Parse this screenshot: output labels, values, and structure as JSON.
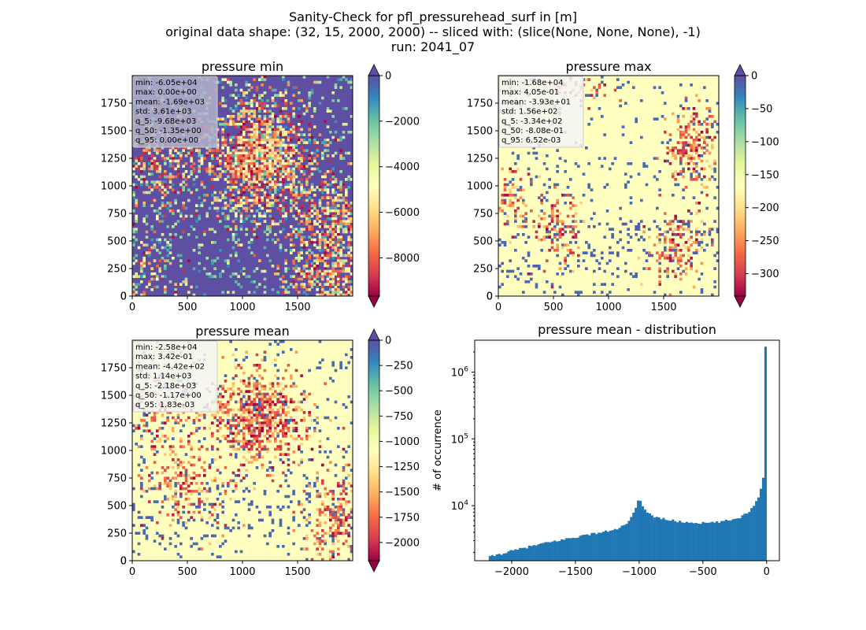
{
  "suptitle": {
    "line1": "Sanity-Check for pfl_pressurehead_surf in [m]",
    "line2": "original data shape: (32, 15, 2000, 2000) -- sliced with: (slice(None, None, None), -1)",
    "line3": "run: 2041_07"
  },
  "colors": {
    "spectral": [
      "#9e0142",
      "#d53e4f",
      "#f46d43",
      "#fdae61",
      "#fee08b",
      "#ffffbf",
      "#e6f598",
      "#abdda4",
      "#66c2a5",
      "#3288bd",
      "#5e4fa2"
    ],
    "hist_bar": "#1f77b4",
    "stats_box_bg": "#f5f5f5"
  },
  "chart_data": [
    {
      "type": "heatmap",
      "title": "pressure min",
      "colormap": "Spectral",
      "xlim": [
        0,
        2000
      ],
      "ylim": [
        0,
        2000
      ],
      "xticks": [
        0,
        500,
        1000,
        1500
      ],
      "yticks": [
        0,
        250,
        500,
        750,
        1000,
        1250,
        1500,
        1750
      ],
      "colorbar": {
        "range": [
          -9680,
          0
        ],
        "ticks": [
          0,
          -2000,
          -4000,
          -6000,
          -8000
        ],
        "extend": "both"
      },
      "dominant_value": "0 (blue) with scattered negative patches",
      "stats": [
        "min: -6.05e+04",
        "max: 0.00e+00",
        "mean: -1.69e+03",
        "std: 3.61e+03",
        "q_5: -9.68e+03",
        "q_50: -1.35e+00",
        "q_95: 0.00e+00"
      ]
    },
    {
      "type": "heatmap",
      "title": "pressure max",
      "colormap": "Spectral",
      "xlim": [
        0,
        2000
      ],
      "ylim": [
        0,
        2000
      ],
      "xticks": [
        0,
        500,
        1000,
        1500
      ],
      "yticks": [
        0,
        250,
        500,
        750,
        1000,
        1250,
        1500,
        1750
      ],
      "colorbar": {
        "range": [
          -334,
          0.0065
        ],
        "ticks": [
          0,
          -50,
          -100,
          -150,
          -200,
          -250,
          -300
        ],
        "extend": "both"
      },
      "dominant_value": "near 0 (pale yellow)",
      "stats": [
        "min: -1.68e+04",
        "max: 4.05e-01",
        "mean: -3.93e+01",
        "std: 1.56e+02",
        "q_5: -3.34e+02",
        "q_50: -8.08e-01",
        "q_95: 6.52e-03"
      ]
    },
    {
      "type": "heatmap",
      "title": "pressure mean",
      "colormap": "Spectral",
      "xlim": [
        0,
        2000
      ],
      "ylim": [
        0,
        2000
      ],
      "xticks": [
        0,
        500,
        1000,
        1500
      ],
      "yticks": [
        0,
        250,
        500,
        750,
        1000,
        1250,
        1500,
        1750
      ],
      "colorbar": {
        "range": [
          -2180,
          0.0018
        ],
        "ticks": [
          0,
          -250,
          -500,
          -750,
          -1000,
          -1250,
          -1500,
          -1750,
          -2000
        ],
        "extend": "both"
      },
      "dominant_value": "near 0 (pale yellow) with negative central region",
      "stats": [
        "min: -2.58e+04",
        "max: 3.42e-01",
        "mean: -4.42e+02",
        "std: 1.14e+03",
        "q_5: -2.18e+03",
        "q_50: -1.17e+00",
        "q_95: 1.83e-03"
      ]
    },
    {
      "type": "bar",
      "title": "pressure mean - distribution",
      "ylabel": "# of occurrence",
      "yscale": "log",
      "xlim": [
        -2290,
        100
      ],
      "ylim": [
        1500,
        3000000
      ],
      "xticks": [
        -2000,
        -1500,
        -1000,
        -500,
        0
      ],
      "yticks": [
        10000,
        100000,
        1000000
      ],
      "ytick_labels": [
        [
          "10",
          "4"
        ],
        [
          "10",
          "5"
        ],
        [
          "10",
          "6"
        ]
      ],
      "bin_range": [
        -2180,
        0
      ],
      "bin_count": 120,
      "profile_points": [
        [
          -2180,
          1700
        ],
        [
          -2000,
          2100
        ],
        [
          -1800,
          2600
        ],
        [
          -1600,
          3100
        ],
        [
          -1400,
          3700
        ],
        [
          -1200,
          4300
        ],
        [
          -1100,
          5200
        ],
        [
          -1030,
          8500
        ],
        [
          -1000,
          13000
        ],
        [
          -960,
          9000
        ],
        [
          -900,
          7000
        ],
        [
          -800,
          6300
        ],
        [
          -700,
          5800
        ],
        [
          -600,
          5600
        ],
        [
          -500,
          5500
        ],
        [
          -400,
          5600
        ],
        [
          -300,
          6000
        ],
        [
          -200,
          6800
        ],
        [
          -120,
          8800
        ],
        [
          -60,
          14000
        ],
        [
          -20,
          30000
        ],
        [
          -10,
          44000
        ],
        [
          -3,
          36000
        ],
        [
          0,
          2400000
        ]
      ]
    }
  ]
}
